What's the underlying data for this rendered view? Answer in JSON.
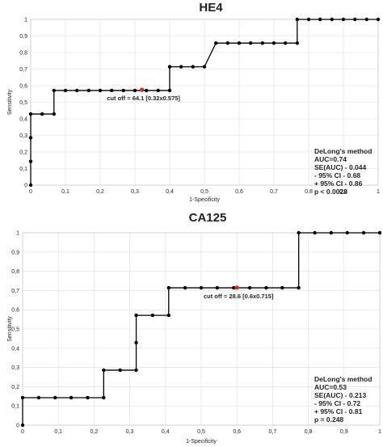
{
  "chart_data": [
    {
      "type": "line",
      "title": "HE4",
      "xlabel": "1-Specificity",
      "ylabel": "Sensitivity",
      "xlim": [
        0,
        1
      ],
      "ylim": [
        0,
        1
      ],
      "grid": true,
      "x_ticks": [
        "0",
        "0,1",
        "0,2",
        "0,3",
        "0,4",
        "0,5",
        "0,6",
        "0,7",
        "0,8",
        "0,9",
        "1"
      ],
      "y_ticks": [
        "0",
        "0,1",
        "0,2",
        "0,3",
        "0,4",
        "0,5",
        "0,6",
        "0,7",
        "0,8",
        "0,9",
        "1"
      ],
      "points": [
        [
          0,
          0
        ],
        [
          0,
          0.143
        ],
        [
          0,
          0.286
        ],
        [
          0,
          0.429
        ],
        [
          0.033,
          0.429
        ],
        [
          0.067,
          0.429
        ],
        [
          0.067,
          0.571
        ],
        [
          0.1,
          0.571
        ],
        [
          0.133,
          0.571
        ],
        [
          0.167,
          0.571
        ],
        [
          0.2,
          0.571
        ],
        [
          0.233,
          0.571
        ],
        [
          0.267,
          0.571
        ],
        [
          0.3,
          0.571
        ],
        [
          0.333,
          0.571
        ],
        [
          0.367,
          0.571
        ],
        [
          0.4,
          0.571
        ],
        [
          0.4,
          0.714
        ],
        [
          0.433,
          0.714
        ],
        [
          0.467,
          0.714
        ],
        [
          0.5,
          0.714
        ],
        [
          0.533,
          0.857
        ],
        [
          0.567,
          0.857
        ],
        [
          0.6,
          0.857
        ],
        [
          0.633,
          0.857
        ],
        [
          0.667,
          0.857
        ],
        [
          0.7,
          0.857
        ],
        [
          0.733,
          0.857
        ],
        [
          0.767,
          0.857
        ],
        [
          0.767,
          1
        ],
        [
          0.8,
          1
        ],
        [
          0.833,
          1
        ],
        [
          0.867,
          1
        ],
        [
          0.9,
          1
        ],
        [
          0.933,
          1
        ],
        [
          0.967,
          1
        ],
        [
          1,
          1
        ]
      ],
      "cutoff_point": [
        0.32,
        0.575
      ],
      "cutoff_color": "#e0231c",
      "cutoff_label": "cut off = 64.1 [0.32x0.575]",
      "stats": [
        "DeLong's method",
        "AUC=0.74",
        "SE(AUC) - 0.044",
        "- 95% CI - 0.68",
        "+ 95% CI - 0.86",
        "p < 0.0028"
      ]
    },
    {
      "type": "line",
      "title": "CA125",
      "xlabel": "1-Specificity",
      "ylabel": "Sensitivity",
      "xlim": [
        0,
        1
      ],
      "ylim": [
        0,
        1
      ],
      "grid": true,
      "x_ticks": [
        "0",
        "0,1",
        "0,2",
        "0,3",
        "0,4",
        "0,5",
        "0,6",
        "0,7",
        "0,8",
        "0,9",
        "1"
      ],
      "y_ticks": [
        "0",
        "0,1",
        "0,2",
        "0,3",
        "0,4",
        "0,5",
        "0,6",
        "0,7",
        "0,8",
        "0,9",
        "1"
      ],
      "points": [
        [
          0,
          0
        ],
        [
          0,
          0.143
        ],
        [
          0.045,
          0.143
        ],
        [
          0.091,
          0.143
        ],
        [
          0.136,
          0.143
        ],
        [
          0.182,
          0.143
        ],
        [
          0.227,
          0.143
        ],
        [
          0.227,
          0.286
        ],
        [
          0.273,
          0.286
        ],
        [
          0.318,
          0.286
        ],
        [
          0.318,
          0.429
        ],
        [
          0.318,
          0.571
        ],
        [
          0.364,
          0.571
        ],
        [
          0.409,
          0.571
        ],
        [
          0.409,
          0.714
        ],
        [
          0.455,
          0.714
        ],
        [
          0.5,
          0.714
        ],
        [
          0.545,
          0.714
        ],
        [
          0.591,
          0.714
        ],
        [
          0.636,
          0.714
        ],
        [
          0.682,
          0.714
        ],
        [
          0.727,
          0.714
        ],
        [
          0.773,
          0.714
        ],
        [
          0.773,
          1
        ],
        [
          0.818,
          1
        ],
        [
          0.864,
          1
        ],
        [
          0.909,
          1
        ],
        [
          0.955,
          1
        ],
        [
          1,
          1
        ]
      ],
      "cutoff_point": [
        0.6,
        0.715
      ],
      "cutoff_color": "#e0231c",
      "cutoff_label": "cut off = 28.6 [0.6x0.715]",
      "stats": [
        "DeLong's method",
        "AUC=0.53",
        "SE(AUC) - 0.213",
        "- 95% CI - 0.72",
        "+ 95% CI - 0.81",
        "p = 0.248"
      ]
    }
  ]
}
